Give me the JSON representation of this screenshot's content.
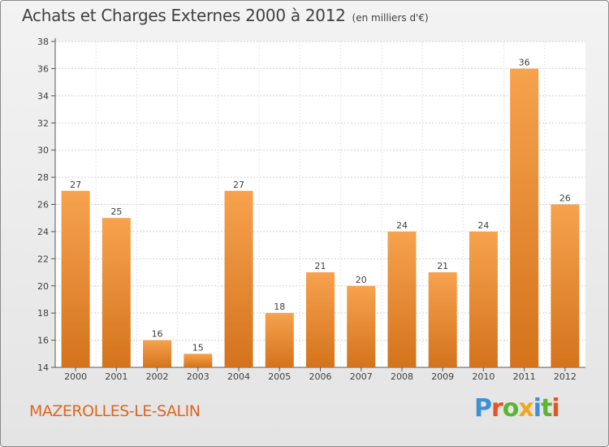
{
  "chart_data": {
    "type": "bar",
    "title": "Achats et Charges Externes 2000 à 2012",
    "subtitle": "(en milliers d'€)",
    "categories": [
      "2000",
      "2001",
      "2002",
      "2003",
      "2004",
      "2005",
      "2006",
      "2007",
      "2008",
      "2009",
      "2010",
      "2011",
      "2012"
    ],
    "values": [
      27,
      25,
      16,
      15,
      27,
      18,
      21,
      20,
      24,
      21,
      24,
      36,
      26
    ],
    "ylim": [
      14,
      38
    ],
    "yticks": [
      14,
      16,
      18,
      20,
      22,
      24,
      26,
      28,
      30,
      32,
      34,
      36,
      38
    ],
    "grid": true,
    "bar_color_light": "#f7a24e",
    "bar_color_dark": "#d4731c"
  },
  "location": "MAZEROLLES-LE-SALIN",
  "brand": {
    "text": "Proxiti",
    "letters": [
      "P",
      "r",
      "o",
      "x",
      "i",
      "t",
      "i"
    ],
    "colors": [
      "#3d8fd6",
      "#e8541c",
      "#5cb531",
      "#f0a81c",
      "#3d8fd6",
      "#5cb531",
      "#e8541c"
    ]
  }
}
